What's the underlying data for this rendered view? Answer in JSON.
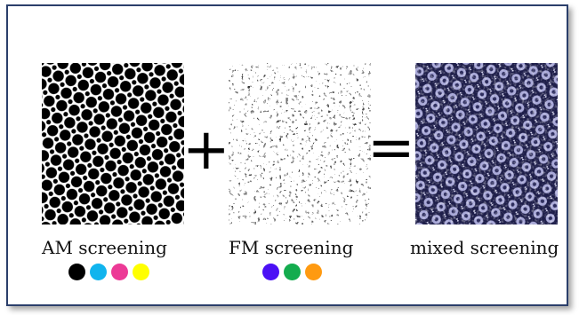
{
  "panels": [
    {
      "id": "am",
      "caption": "AM screening",
      "inks": [
        "#000000",
        "#10b4ee",
        "#ec3a96",
        "#ffff00"
      ]
    },
    {
      "id": "fm",
      "caption": "FM screening",
      "inks": [
        "#4b10f5",
        "#14ac4e",
        "#ff9a10"
      ]
    },
    {
      "id": "mixed",
      "caption": "mixed screening",
      "inks": []
    }
  ],
  "operators": {
    "plus": "+",
    "equals": "="
  }
}
